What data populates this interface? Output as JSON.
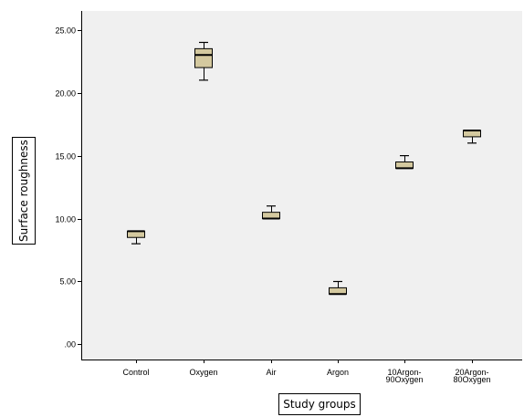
{
  "chart_data": {
    "type": "box",
    "title": "",
    "xlabel": "Study groups",
    "ylabel": "Surface roughness",
    "ylim": [
      -1.2,
      26.5
    ],
    "yticks": [
      ".00",
      "5.00",
      "10.00",
      "15.00",
      "20.00",
      "25.00"
    ],
    "ytick_values": [
      0,
      5,
      10,
      15,
      20,
      25
    ],
    "grid": false,
    "categories": [
      {
        "label": [
          "Control"
        ],
        "min": 8.0,
        "q1": 8.5,
        "median": 9.0,
        "q3": 9.0,
        "max": 9.0
      },
      {
        "label": [
          "Oxygen"
        ],
        "min": 21.0,
        "q1": 22.0,
        "median": 23.0,
        "q3": 23.5,
        "max": 24.0
      },
      {
        "label": [
          "Air"
        ],
        "min": 10.0,
        "q1": 10.0,
        "median": 10.0,
        "q3": 10.5,
        "max": 11.0
      },
      {
        "label": [
          "Argon"
        ],
        "min": 4.0,
        "q1": 4.0,
        "median": 4.0,
        "q3": 4.5,
        "max": 5.0
      },
      {
        "label": [
          "10Argon-",
          "90Oxygen"
        ],
        "min": 14.0,
        "q1": 14.0,
        "median": 14.0,
        "q3": 14.5,
        "max": 15.0
      },
      {
        "label": [
          "20Argon-",
          "80Oxygen"
        ],
        "min": 16.0,
        "q1": 16.5,
        "median": 17.0,
        "q3": 17.0,
        "max": 17.0
      }
    ],
    "colors": {
      "plot_bg": "#f0f0f0",
      "box_fill": "#d4c99f",
      "line": "#000000"
    }
  }
}
